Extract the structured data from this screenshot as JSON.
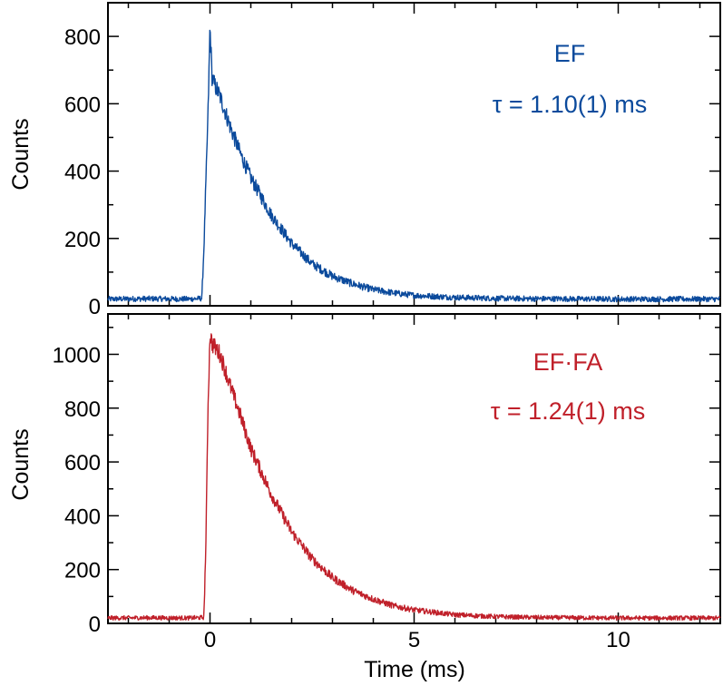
{
  "chart_data": [
    {
      "type": "line",
      "panel": "top",
      "series_name": "EF",
      "color": "#0b4a9c",
      "annotation_label": "EF",
      "annotation_tau": "τ = 1.10(1) ms",
      "tau_ms": 1.1,
      "baseline": 20,
      "peak": 830,
      "ylabel": "Counts",
      "xlim": [
        -2.5,
        12.5
      ],
      "ylim": [
        0,
        900
      ],
      "yticks": [
        0,
        200,
        400,
        600,
        800
      ],
      "ytick_labels": [
        "0",
        "200",
        "400",
        "600",
        "800"
      ],
      "points": [
        [
          -2.5,
          20
        ],
        [
          -1.5,
          21
        ],
        [
          -0.5,
          20
        ],
        [
          -0.2,
          22
        ],
        [
          -0.15,
          170
        ],
        [
          -0.05,
          560
        ],
        [
          0.0,
          830
        ],
        [
          0.05,
          680
        ],
        [
          0.1,
          660
        ],
        [
          0.25,
          620
        ],
        [
          0.5,
          530
        ],
        [
          0.75,
          450
        ],
        [
          1.0,
          380
        ],
        [
          1.5,
          270
        ],
        [
          2.0,
          185
        ],
        [
          2.5,
          125
        ],
        [
          3.0,
          88
        ],
        [
          3.5,
          65
        ],
        [
          4.0,
          48
        ],
        [
          4.5,
          38
        ],
        [
          5.0,
          31
        ],
        [
          6.0,
          25
        ],
        [
          7.0,
          22
        ],
        [
          8.0,
          21
        ],
        [
          10.0,
          20
        ],
        [
          12.5,
          20
        ]
      ]
    },
    {
      "type": "line",
      "panel": "bottom",
      "series_name": "EF·FA",
      "color": "#c0202a",
      "annotation_label": "EF·FA",
      "annotation_tau": "τ = 1.24(1) ms",
      "tau_ms": 1.24,
      "baseline": 20,
      "peak": 1080,
      "xlabel": "Time (ms)",
      "ylabel": "Counts",
      "xlim": [
        -2.5,
        12.5
      ],
      "ylim": [
        0,
        1150
      ],
      "xticks": [
        0,
        5,
        10
      ],
      "xtick_labels": [
        "0",
        "5",
        "10"
      ],
      "yticks": [
        0,
        200,
        400,
        600,
        800,
        1000
      ],
      "ytick_labels": [
        "0",
        "200",
        "400",
        "600",
        "800",
        "1000"
      ],
      "points": [
        [
          -2.5,
          20
        ],
        [
          -1.5,
          21
        ],
        [
          -0.5,
          20
        ],
        [
          -0.15,
          22
        ],
        [
          -0.1,
          300
        ],
        [
          -0.05,
          800
        ],
        [
          0.0,
          1080
        ],
        [
          0.05,
          1040
        ],
        [
          0.25,
          1000
        ],
        [
          0.5,
          880
        ],
        [
          0.75,
          770
        ],
        [
          1.0,
          650
        ],
        [
          1.5,
          480
        ],
        [
          2.0,
          340
        ],
        [
          2.5,
          240
        ],
        [
          3.0,
          170
        ],
        [
          3.5,
          122
        ],
        [
          4.0,
          90
        ],
        [
          4.5,
          65
        ],
        [
          5.0,
          50
        ],
        [
          6.0,
          32
        ],
        [
          7.0,
          25
        ],
        [
          8.0,
          22
        ],
        [
          10.0,
          20
        ],
        [
          12.5,
          20
        ]
      ]
    }
  ]
}
